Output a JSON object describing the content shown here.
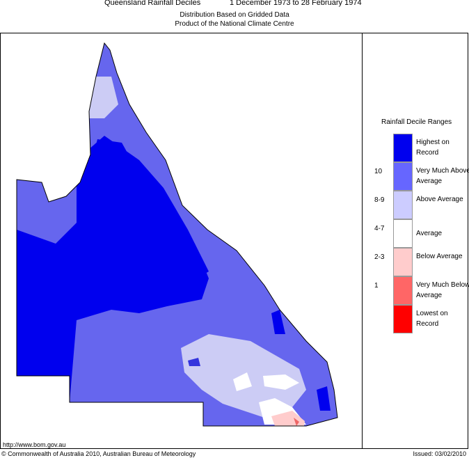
{
  "header": {
    "title": "Queensland Rainfall Deciles",
    "period": "1 December 1973 to 28 February 1974",
    "subtitle_1": "Distribution Based on Gridded Data",
    "subtitle_2": "Product of the National Climate Centre"
  },
  "legend": {
    "title": "Rainfall Decile Ranges",
    "entries": [
      {
        "label": "Highest on Record",
        "color": "#0000ee"
      },
      {
        "label": "Very Much Above Average",
        "decile": "10",
        "color": "#6666ff"
      },
      {
        "label": "Above Average",
        "decile": "8-9",
        "color": "#ccccff"
      },
      {
        "label": "Average",
        "decile": "4-7",
        "color": "#ffffff"
      },
      {
        "label": "Below Average",
        "decile": "2-3",
        "color": "#ffcccc"
      },
      {
        "label": "Very Much Below Average",
        "decile": "1",
        "color": "#ff6666"
      },
      {
        "label": "Lowest on Record",
        "color": "#ff0000"
      }
    ]
  },
  "footer": {
    "url": "http://www.bom.gov.au",
    "copyright": "© Commonwealth of Australia 2010, Australian Bureau of Meteorology",
    "issued": "Issued: 03/02/2010"
  }
}
